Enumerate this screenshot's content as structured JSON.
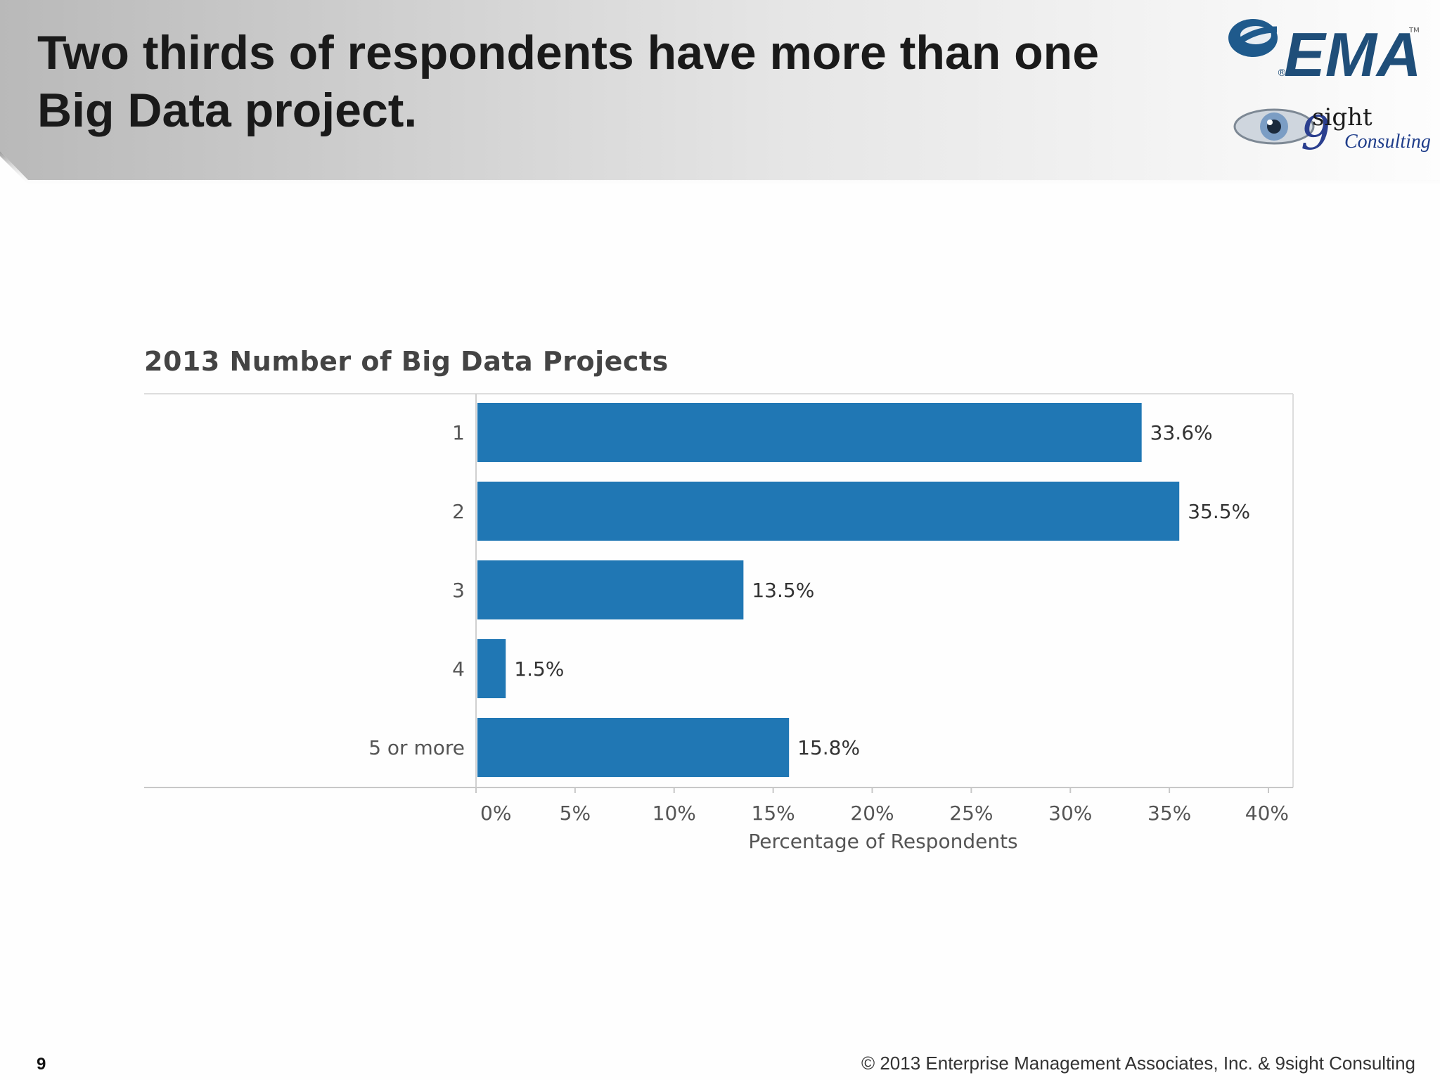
{
  "slide": {
    "title": "Two thirds of respondents have more than one Big Data project.",
    "page_number": "9",
    "copyright": "© 2013 Enterprise Management Associates, Inc. & 9sight Consulting"
  },
  "logos": {
    "ema_text": "EMA",
    "ema_tm": "TM",
    "ema_reg": "®",
    "sight_text": "sight",
    "sight_nine": "9",
    "consulting_text": "Consulting"
  },
  "colors": {
    "bar": "#2077b4",
    "ema_blue": "#1f4e79"
  },
  "chart_data": {
    "type": "bar",
    "orientation": "horizontal",
    "title": "2013 Number of Big Data Projects",
    "categories": [
      "1",
      "2",
      "3",
      "4",
      "5 or more"
    ],
    "values": [
      33.6,
      35.5,
      13.5,
      1.5,
      15.8
    ],
    "value_labels": [
      "33.6%",
      "35.5%",
      "13.5%",
      "1.5%",
      "15.8%"
    ],
    "xlabel": "Percentage of Respondents",
    "ylabel": "",
    "xlim": [
      0,
      40
    ],
    "ticks": [
      "0%",
      "5%",
      "10%",
      "15%",
      "20%",
      "25%",
      "30%",
      "35%",
      "40%"
    ],
    "grid": false
  }
}
